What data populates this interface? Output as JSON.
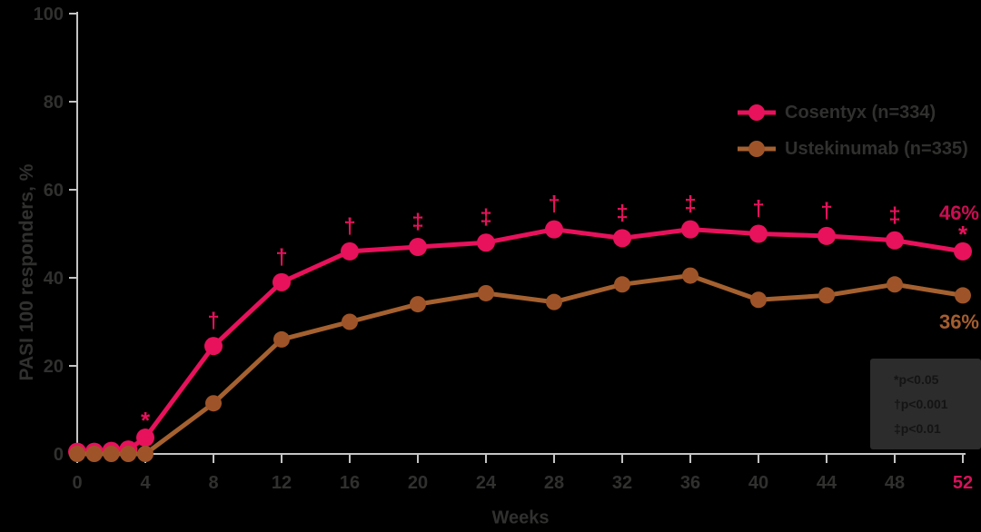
{
  "page": {
    "background": "#000000"
  },
  "colors": {
    "axis_line": "#C4C4C4",
    "text": "#30302F",
    "highlight_tick": "#D8115A",
    "footnote_bg": "#2C2C2C",
    "footnote_text": "#141414"
  },
  "chart_data": {
    "type": "line",
    "title": "",
    "xlabel": "Weeks",
    "ylabel": "PASI 100 responders, %",
    "xlim": [
      0,
      52
    ],
    "ylim": [
      0,
      100
    ],
    "x_ticks": [
      0,
      4,
      8,
      12,
      16,
      20,
      24,
      28,
      32,
      36,
      40,
      44,
      48,
      52
    ],
    "y_ticks": [
      0,
      20,
      40,
      60,
      80,
      100
    ],
    "highlighted_x_tick": 52,
    "grid": false,
    "legend_position": "upper right",
    "x": [
      0,
      1,
      2,
      3,
      4,
      8,
      12,
      16,
      20,
      24,
      28,
      32,
      36,
      40,
      44,
      48,
      52
    ],
    "series": [
      {
        "name": "Cosentyx (n=334)",
        "color": "#E8115C",
        "end_label": "46%",
        "end_label_color": "#CC0E52",
        "values": [
          0.5,
          0.5,
          0.7,
          1,
          3.7,
          24.5,
          39,
          46,
          47,
          48,
          51,
          49,
          51,
          50,
          49.5,
          48.5,
          46
        ],
        "significance": [
          "",
          "",
          "",
          "",
          "*",
          "†",
          "†",
          "†",
          "‡",
          "‡",
          "†",
          "‡",
          "‡",
          "†",
          "†",
          "‡",
          "*"
        ]
      },
      {
        "name": "Ustekinumab (n=335)",
        "color": "#A5612F",
        "marker_color": "#9E5428",
        "end_label": "36%",
        "end_label_color": "#A55E2F",
        "values": [
          0,
          0,
          0,
          0,
          0,
          11.5,
          26,
          30,
          34,
          36.5,
          34.5,
          38.5,
          40.5,
          35,
          36,
          38.5,
          36
        ],
        "significance": []
      }
    ]
  },
  "footnote_box": {
    "lines": [
      "*p<0.05",
      "†p<0.001",
      "‡p<0.01"
    ]
  }
}
